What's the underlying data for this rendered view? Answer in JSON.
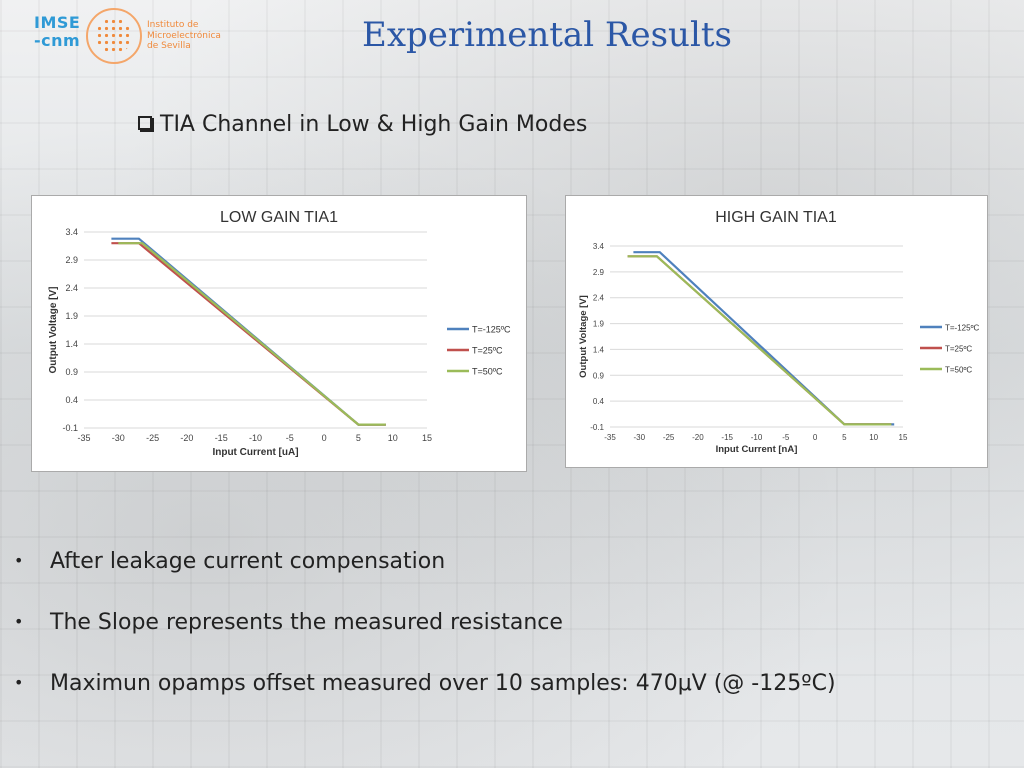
{
  "logo": {
    "short": "IMSE\n-cnm",
    "line1": "Instituto de",
    "line2": "Microelectrónica",
    "line3": "de Sevilla"
  },
  "slide": {
    "title": "Experimental Results",
    "subtitle": "TIA Channel in Low & High Gain Modes",
    "bullets": [
      "After leakage current compensation",
      "The Slope represents the measured resistance",
      "Maximun opamps offset measured over 10 samples: 470μV (@ -125ºC)"
    ]
  },
  "colors": {
    "title": "#2b57a6",
    "t_minus125": "#4f81bd",
    "t_25": "#c0504d",
    "t_50": "#9bbb59"
  },
  "chart_data": [
    {
      "type": "line",
      "title": "LOW GAIN TIA1",
      "xlabel": "Input Current [uA]",
      "ylabel": "Output Voltage [V]",
      "xlim": [
        -35,
        15
      ],
      "ylim": [
        -0.1,
        3.4
      ],
      "xticks": [
        -35,
        -30,
        -25,
        -20,
        -15,
        -10,
        -5,
        0,
        5,
        10,
        15
      ],
      "yticks": [
        -0.1,
        0.4,
        0.9,
        1.4,
        1.9,
        2.4,
        2.9,
        3.4
      ],
      "grid": "horizontal",
      "legend": "right",
      "series": [
        {
          "name": "T=-125ºC",
          "color": "#4f81bd",
          "x": [
            -31,
            -27,
            5,
            9
          ],
          "y": [
            3.28,
            3.28,
            -0.04,
            -0.04
          ]
        },
        {
          "name": "T=25ºC",
          "color": "#c0504d",
          "x": [
            -31,
            -27,
            5,
            9
          ],
          "y": [
            3.2,
            3.2,
            -0.04,
            -0.04
          ]
        },
        {
          "name": "T=50ºC",
          "color": "#9bbb59",
          "x": [
            -30,
            -26.5,
            5,
            9
          ],
          "y": [
            3.2,
            3.2,
            -0.04,
            -0.04
          ]
        }
      ]
    },
    {
      "type": "line",
      "title": "HIGH GAIN TIA1",
      "xlabel": "Input Current [nA]",
      "ylabel": "Output Voltage [V]",
      "xlim": [
        -35,
        15
      ],
      "ylim": [
        -0.1,
        3.4
      ],
      "xticks": [
        -35,
        -30,
        -25,
        -20,
        -15,
        -10,
        -5,
        0,
        5,
        10,
        15
      ],
      "yticks": [
        -0.1,
        0.4,
        0.9,
        1.4,
        1.9,
        2.4,
        2.9,
        3.4
      ],
      "grid": "horizontal",
      "legend": "right",
      "series": [
        {
          "name": "T=-125ºC",
          "color": "#4f81bd",
          "x": [
            -31,
            -26.5,
            5,
            13.5
          ],
          "y": [
            3.28,
            3.28,
            -0.05,
            -0.05
          ]
        },
        {
          "name": "T=25ºC",
          "color": "#c0504d",
          "x": [
            -32,
            -27,
            5,
            13
          ],
          "y": [
            3.2,
            3.2,
            -0.05,
            -0.05
          ]
        },
        {
          "name": "T=50ºC",
          "color": "#9bbb59",
          "x": [
            -32,
            -27,
            5,
            13
          ],
          "y": [
            3.2,
            3.2,
            -0.05,
            -0.05
          ]
        }
      ]
    }
  ]
}
